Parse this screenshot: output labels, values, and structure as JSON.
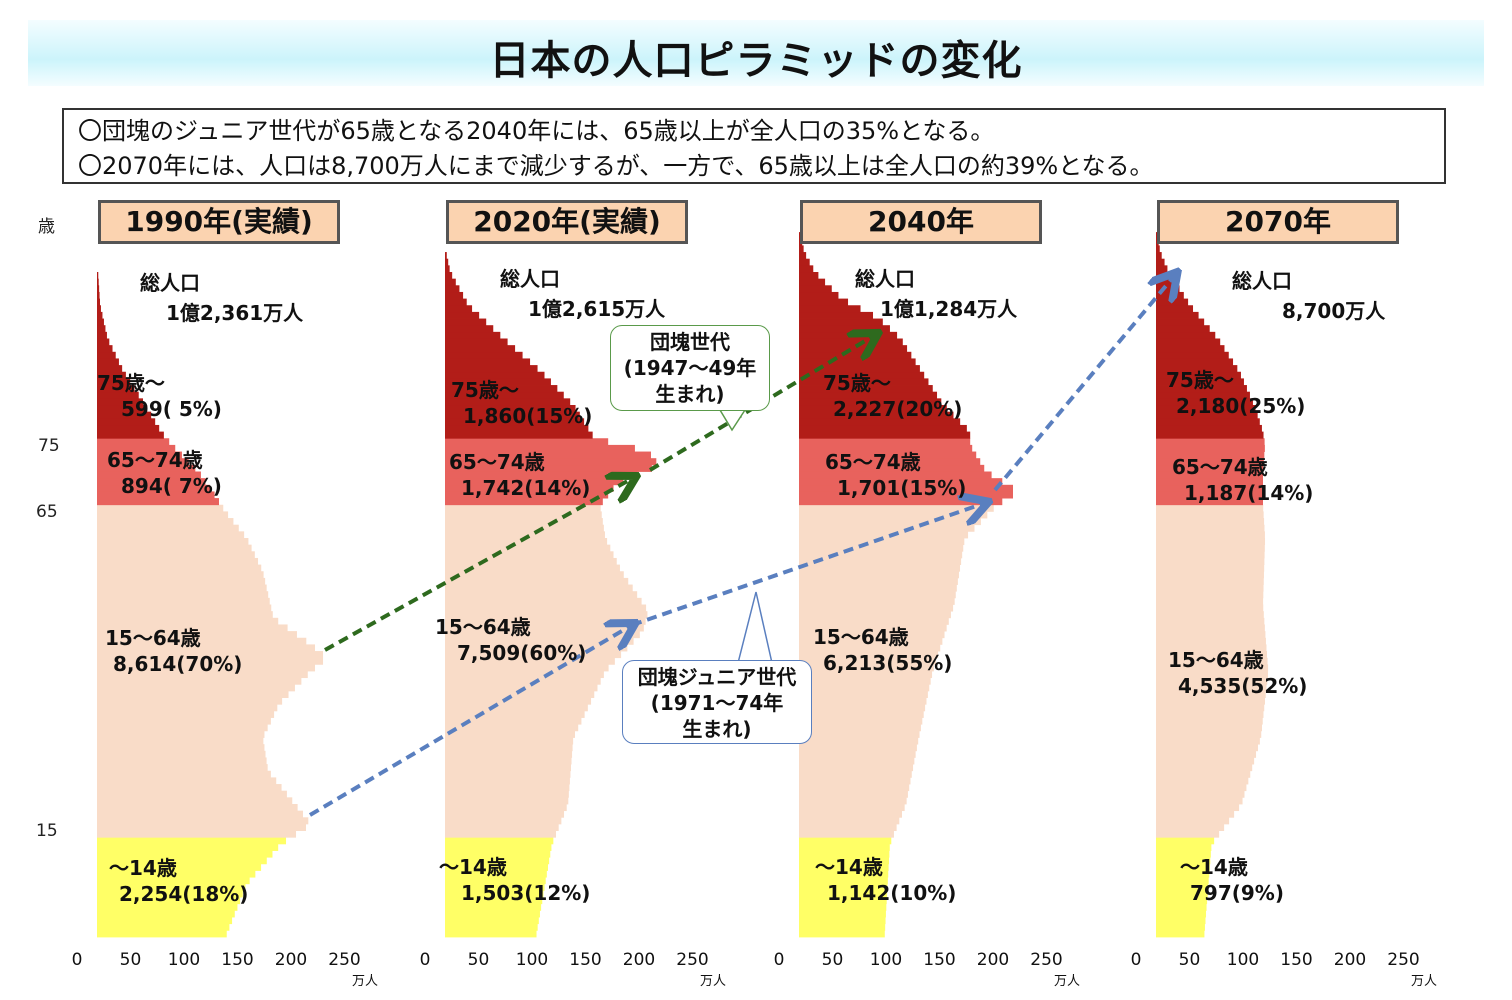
{
  "chart_data": {
    "type": "bar",
    "title": "日本の人口ピラミッドの変化",
    "summary": [
      "〇団塊のジュニア世代が65歳となる2040年には、65歳以上が全人口の35%となる。",
      "〇2070年には、人口は8,700万人にまで減少するが、一方で、65歳以上は全人口の約39%となる。"
    ],
    "ylabel": "歳",
    "yticks": [
      "75",
      "65",
      "15"
    ],
    "xticks": [
      "0",
      "50",
      "100",
      "150",
      "200",
      "250"
    ],
    "xunit": "万人",
    "xlim": [
      0,
      250
    ],
    "colors": {
      "75+": "#b21d18",
      "65-74": "#e8625d",
      "15-64": "#f9dcc8",
      "0-14": "#ffff66"
    },
    "panels": [
      {
        "year": "1990年(実績)",
        "total_label": "総人口",
        "total": "1億2,361万人",
        "groups": [
          {
            "label": "75歳～",
            "value": "599( 5%)"
          },
          {
            "label": "65～74歳",
            "value": "894( 7%)"
          },
          {
            "label": "15～64歳",
            "value": "8,614(70%)"
          },
          {
            "label": "～14歳",
            "value": "2,254(18%)"
          }
        ],
        "profile": [
          [
            0,
            120
          ],
          [
            8,
            140
          ],
          [
            14,
            172
          ],
          [
            17,
            200
          ],
          [
            20,
            185
          ],
          [
            25,
            160
          ],
          [
            30,
            155
          ],
          [
            35,
            170
          ],
          [
            40,
            200
          ],
          [
            42,
            215
          ],
          [
            44,
            200
          ],
          [
            48,
            165
          ],
          [
            55,
            155
          ],
          [
            60,
            140
          ],
          [
            64,
            120
          ],
          [
            66,
            112
          ],
          [
            70,
            95
          ],
          [
            74,
            70
          ],
          [
            76,
            60
          ],
          [
            80,
            45
          ],
          [
            85,
            25
          ],
          [
            90,
            10
          ],
          [
            95,
            3
          ],
          [
            100,
            1
          ]
        ]
      },
      {
        "year": "2020年(実績)",
        "total_label": "総人口",
        "total": "1億2,615万人",
        "groups": [
          {
            "label": "75歳～",
            "value": "1,860(15%)"
          },
          {
            "label": "65～74歳",
            "value": "1,742(14%)"
          },
          {
            "label": "15～64歳",
            "value": "7,509(60%)"
          },
          {
            "label": "～14歳",
            "value": "1,503(12%)"
          }
        ],
        "profile": [
          [
            0,
            85
          ],
          [
            14,
            100
          ],
          [
            20,
            115
          ],
          [
            30,
            120
          ],
          [
            40,
            150
          ],
          [
            46,
            185
          ],
          [
            49,
            190
          ],
          [
            55,
            165
          ],
          [
            60,
            150
          ],
          [
            65,
            145
          ],
          [
            68,
            160
          ],
          [
            71,
            200
          ],
          [
            73,
            190
          ],
          [
            75,
            140
          ],
          [
            80,
            120
          ],
          [
            85,
            90
          ],
          [
            90,
            55
          ],
          [
            95,
            22
          ],
          [
            100,
            5
          ],
          [
            103,
            1
          ]
        ]
      },
      {
        "year": "2040年",
        "total_label": "総人口",
        "total": "1億1,284万人",
        "groups": [
          {
            "label": "75歳～",
            "value": "2,227(20%)"
          },
          {
            "label": "65～74歳",
            "value": "1,701(15%)"
          },
          {
            "label": "15～64歳",
            "value": "6,213(55%)"
          },
          {
            "label": "～14歳",
            "value": "1,142(10%)"
          }
        ],
        "profile": [
          [
            0,
            80
          ],
          [
            14,
            85
          ],
          [
            20,
            100
          ],
          [
            30,
            112
          ],
          [
            40,
            125
          ],
          [
            50,
            145
          ],
          [
            60,
            155
          ],
          [
            65,
            185
          ],
          [
            67,
            205
          ],
          [
            70,
            175
          ],
          [
            74,
            160
          ],
          [
            76,
            160
          ],
          [
            80,
            135
          ],
          [
            85,
            115
          ],
          [
            90,
            95
          ],
          [
            93,
            75
          ],
          [
            96,
            40
          ],
          [
            100,
            15
          ],
          [
            103,
            5
          ],
          [
            106,
            1
          ]
        ]
      },
      {
        "year": "2070年",
        "total_label": "総人口",
        "total": "8,700万人",
        "groups": [
          {
            "label": "75歳～",
            "value": "2,180(25%)"
          },
          {
            "label": "65～74歳",
            "value": "1,187(14%)"
          },
          {
            "label": "15～64歳",
            "value": "4,535(52%)"
          },
          {
            "label": "～14歳",
            "value": "797(9%)"
          }
        ],
        "profile": [
          [
            0,
            45
          ],
          [
            14,
            52
          ],
          [
            20,
            80
          ],
          [
            30,
            98
          ],
          [
            40,
            105
          ],
          [
            50,
            100
          ],
          [
            60,
            102
          ],
          [
            65,
            100
          ],
          [
            70,
            100
          ],
          [
            74,
            102
          ],
          [
            76,
            100
          ],
          [
            80,
            92
          ],
          [
            85,
            78
          ],
          [
            90,
            58
          ],
          [
            95,
            32
          ],
          [
            100,
            12
          ],
          [
            103,
            4
          ],
          [
            106,
            1
          ]
        ]
      }
    ],
    "annotations": [
      {
        "text": "団塊世代\n(1947～49年\n生まれ)",
        "color": "#2e6a1e"
      },
      {
        "text": "団塊ジュニア世代\n(1971～74年\n生まれ)",
        "color": "#5a7fbf"
      }
    ]
  }
}
